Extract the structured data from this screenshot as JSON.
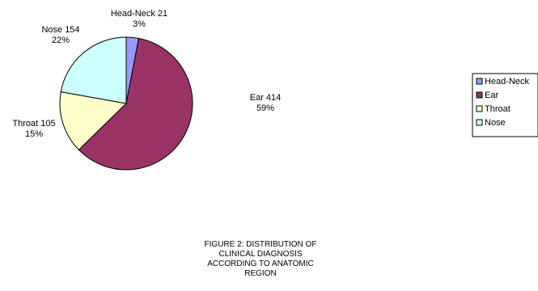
{
  "chart_data": {
    "type": "pie",
    "categories": [
      "Head-Neck",
      "Ear",
      "Throat",
      "Nose"
    ],
    "values": [
      21,
      414,
      105,
      154
    ],
    "percent_labels": [
      "3%",
      "59%",
      "15%",
      "22%"
    ],
    "colors": [
      "#9999FF",
      "#993366",
      "#FFFFCC",
      "#CCFFFF"
    ],
    "start_angle_deg": 0,
    "direction": "clockwise",
    "legend_placement": "right",
    "caption_lines": [
      "FIGURE 2: DISTRIBUTION OF",
      "CLINICAL DIAGNOSIS",
      "ACCORDING TO ANATOMIC",
      "REGION"
    ]
  }
}
